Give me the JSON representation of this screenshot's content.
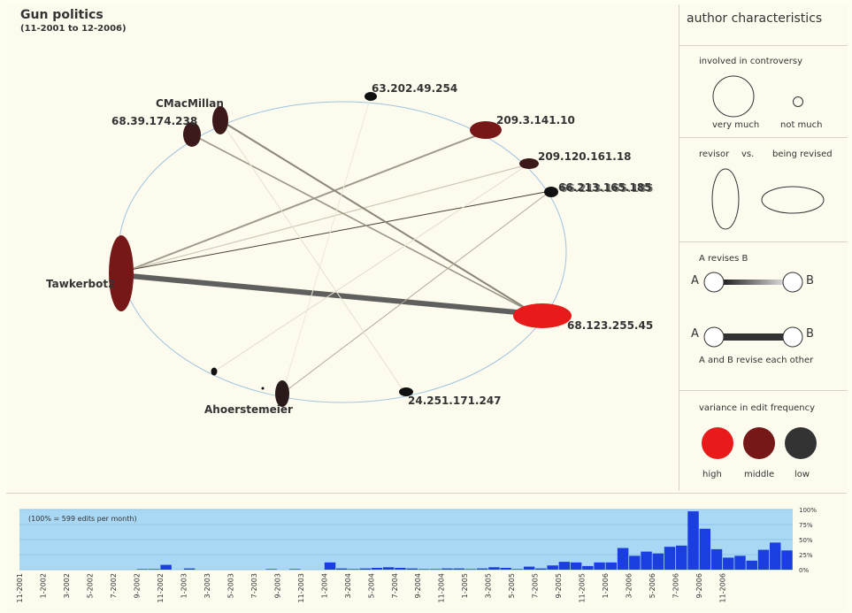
{
  "header": {
    "title": "Gun politics",
    "subtitle": "(11-2001 to 12-2006)"
  },
  "network": {
    "nodes": [
      {
        "id": "tawkerbot",
        "label": "Tawkerbot2",
        "color": "#771818"
      },
      {
        "id": "cmac",
        "label": "CMacMillan",
        "color": "#3d1a1a"
      },
      {
        "id": "ip68_39",
        "label": "68.39.174.238",
        "color": "#3a1a1a"
      },
      {
        "id": "ip63",
        "label": "63.202.49.254",
        "color": "#111111"
      },
      {
        "id": "ip209_3",
        "label": "209.3.141.10",
        "color": "#771818"
      },
      {
        "id": "ip209_120",
        "label": "209.120.161.18",
        "color": "#3d1a1a"
      },
      {
        "id": "ipover",
        "label": "66.213.165.185",
        "color": "#111111"
      },
      {
        "id": "ip68_123",
        "label": "68.123.255.45",
        "color": "#e81a1a"
      },
      {
        "id": "ip24",
        "label": "24.251.171.247",
        "color": "#111111"
      },
      {
        "id": "ahoer",
        "label": "Ahoerstemeier",
        "color": "#2a1a1a"
      },
      {
        "id": "small1",
        "label": "",
        "color": "#111111"
      },
      {
        "id": "small2",
        "label": "",
        "color": "#111111"
      }
    ]
  },
  "legend": {
    "title": "author characteristics",
    "controversy": {
      "title": "involved in controversy",
      "very": "very much",
      "not": "not much"
    },
    "revisor": {
      "left": "revisor",
      "vs": "vs.",
      "right": "being revised"
    },
    "revises": {
      "title": "A revises B",
      "a": "A",
      "b": "B",
      "mutual": "A and B revise each other"
    },
    "frequency": {
      "title": "variance in edit frequency",
      "items": [
        {
          "label": "high",
          "color": "#e81a1a"
        },
        {
          "label": "middle",
          "color": "#771818"
        },
        {
          "label": "low",
          "color": "#333333"
        }
      ]
    }
  },
  "chart_data": {
    "type": "bar",
    "note": "(100% = 599 edits per month)",
    "ylim": [
      0,
      100
    ],
    "yticks": [
      "100%",
      "75%",
      "50%",
      "25%",
      "0%"
    ],
    "x_tick_labels": [
      "11-2001",
      "1-2002",
      "3-2002",
      "5-2002",
      "7-2002",
      "9-2002",
      "11-2002",
      "1-2003",
      "3-2003",
      "5-2003",
      "7-2003",
      "9-2003",
      "11-2003",
      "1-2004",
      "3-2004",
      "5-2004",
      "7-2004",
      "9-2004",
      "11-2004",
      "1-2005",
      "3-2005",
      "5-2005",
      "7-2005",
      "9-2005",
      "11-2005",
      "1-2006",
      "3-2006",
      "5-2006",
      "7-2006",
      "9-2006",
      "11-2006"
    ],
    "values": [
      0,
      0,
      0,
      0,
      0,
      0,
      0,
      0,
      0,
      0,
      1,
      1,
      8,
      0,
      2,
      0,
      0,
      0,
      0,
      0,
      0,
      1,
      0,
      1,
      0,
      0,
      12,
      2,
      1,
      2,
      3,
      4,
      3,
      2,
      1,
      1,
      2,
      2,
      1,
      2,
      4,
      3,
      1,
      5,
      2,
      7,
      13,
      12,
      6,
      12,
      12,
      36,
      23,
      30,
      27,
      38,
      40,
      97,
      68,
      34,
      20,
      23,
      15,
      33,
      45,
      32
    ]
  }
}
